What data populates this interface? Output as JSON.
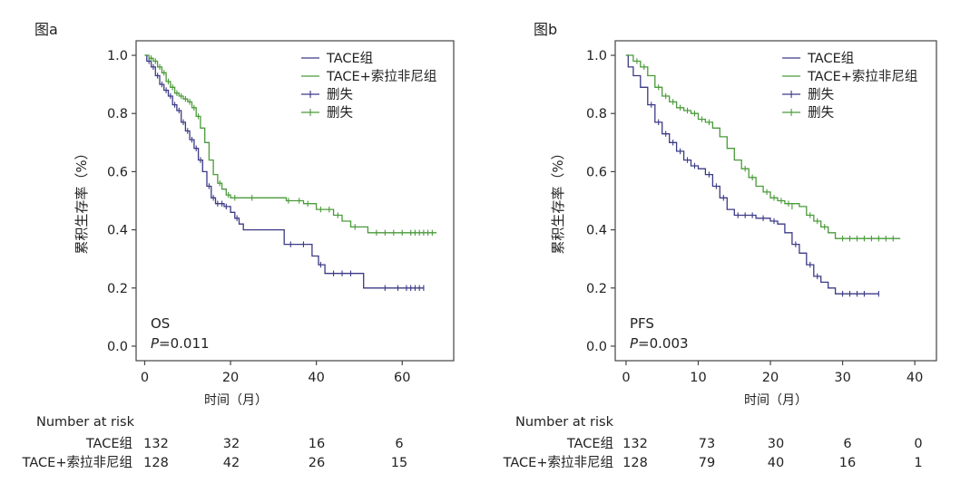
{
  "colors": {
    "tace": "#3b3a86",
    "combo": "#4a9a3a",
    "frame": "#444444",
    "text": "#222222"
  },
  "chart_data": [
    {
      "type": "line",
      "panel_label": "图a",
      "xlabel": "时间（月）",
      "ylabel": "累积生存率（%）",
      "xlim": [
        -2,
        72
      ],
      "ylim": [
        -0.05,
        1.05
      ],
      "xticks": [
        0,
        20,
        40,
        60
      ],
      "yticks": [
        0.0,
        0.2,
        0.4,
        0.6,
        0.8,
        1.0
      ],
      "ytick_labels": [
        "0.0",
        "0.2",
        "0.4",
        "0.6",
        "0.8",
        "1.0"
      ],
      "annotation": {
        "metric": "OS",
        "p_label": "P",
        "p_value": "=0.011"
      },
      "legend": [
        "TACE组",
        "TACE+索拉非尼组",
        "删失",
        "删失"
      ],
      "series": [
        {
          "name": "TACE组",
          "color_key": "tace",
          "steps": [
            [
              0,
              1.0
            ],
            [
              0.5,
              0.98
            ],
            [
              1.5,
              0.96
            ],
            [
              2.5,
              0.93
            ],
            [
              3.5,
              0.9
            ],
            [
              4.5,
              0.88
            ],
            [
              5.5,
              0.86
            ],
            [
              6.5,
              0.83
            ],
            [
              7.5,
              0.81
            ],
            [
              8.5,
              0.77
            ],
            [
              9.5,
              0.74
            ],
            [
              10.5,
              0.71
            ],
            [
              11.5,
              0.68
            ],
            [
              12.5,
              0.64
            ],
            [
              13.5,
              0.6
            ],
            [
              14.5,
              0.55
            ],
            [
              15.5,
              0.51
            ],
            [
              16.5,
              0.49
            ],
            [
              18.5,
              0.48
            ],
            [
              20,
              0.46
            ],
            [
              21,
              0.44
            ],
            [
              22,
              0.42
            ],
            [
              23,
              0.4
            ],
            [
              32.5,
              0.35
            ],
            [
              39,
              0.31
            ],
            [
              40.5,
              0.28
            ],
            [
              42,
              0.25
            ],
            [
              51,
              0.2
            ],
            [
              65,
              0.2
            ]
          ],
          "censors": [
            [
              1,
              0.98
            ],
            [
              2,
              0.96
            ],
            [
              3,
              0.93
            ],
            [
              4,
              0.9
            ],
            [
              5,
              0.88
            ],
            [
              6,
              0.86
            ],
            [
              7,
              0.83
            ],
            [
              8,
              0.81
            ],
            [
              9,
              0.77
            ],
            [
              10,
              0.74
            ],
            [
              11,
              0.71
            ],
            [
              12,
              0.68
            ],
            [
              13,
              0.64
            ],
            [
              15,
              0.55
            ],
            [
              16,
              0.51
            ],
            [
              17,
              0.49
            ],
            [
              18,
              0.49
            ],
            [
              19,
              0.48
            ],
            [
              21.5,
              0.44
            ],
            [
              34,
              0.35
            ],
            [
              37,
              0.35
            ],
            [
              41,
              0.28
            ],
            [
              44,
              0.25
            ],
            [
              46,
              0.25
            ],
            [
              48,
              0.25
            ],
            [
              56,
              0.2
            ],
            [
              59,
              0.2
            ],
            [
              61,
              0.2
            ],
            [
              62,
              0.2
            ],
            [
              63,
              0.2
            ],
            [
              64,
              0.2
            ],
            [
              65,
              0.2
            ]
          ],
          "risk_table": {
            "label": "TACE组",
            "values": [
              "132",
              "32",
              "16",
              "6"
            ]
          }
        },
        {
          "name": "TACE+索拉非尼组",
          "color_key": "combo",
          "steps": [
            [
              0,
              1.0
            ],
            [
              1,
              0.99
            ],
            [
              2,
              0.98
            ],
            [
              3,
              0.96
            ],
            [
              4,
              0.94
            ],
            [
              5,
              0.91
            ],
            [
              6,
              0.89
            ],
            [
              7,
              0.87
            ],
            [
              8,
              0.86
            ],
            [
              9,
              0.85
            ],
            [
              10,
              0.84
            ],
            [
              11,
              0.82
            ],
            [
              12,
              0.79
            ],
            [
              13,
              0.75
            ],
            [
              14,
              0.7
            ],
            [
              15,
              0.64
            ],
            [
              16,
              0.59
            ],
            [
              17,
              0.56
            ],
            [
              18,
              0.54
            ],
            [
              19,
              0.52
            ],
            [
              20,
              0.51
            ],
            [
              27,
              0.51
            ],
            [
              33,
              0.5
            ],
            [
              37,
              0.49
            ],
            [
              40,
              0.47
            ],
            [
              44,
              0.45
            ],
            [
              46,
              0.43
            ],
            [
              48,
              0.41
            ],
            [
              52,
              0.39
            ],
            [
              68,
              0.39
            ]
          ],
          "censors": [
            [
              1.5,
              0.99
            ],
            [
              2.5,
              0.98
            ],
            [
              3.5,
              0.96
            ],
            [
              4.5,
              0.94
            ],
            [
              5.5,
              0.91
            ],
            [
              6.5,
              0.89
            ],
            [
              7.5,
              0.87
            ],
            [
              8.5,
              0.86
            ],
            [
              9.5,
              0.85
            ],
            [
              10.5,
              0.84
            ],
            [
              11.5,
              0.82
            ],
            [
              12.5,
              0.79
            ],
            [
              17.5,
              0.56
            ],
            [
              19.5,
              0.52
            ],
            [
              21,
              0.51
            ],
            [
              25,
              0.51
            ],
            [
              33.5,
              0.5
            ],
            [
              36,
              0.5
            ],
            [
              38,
              0.49
            ],
            [
              41,
              0.47
            ],
            [
              43,
              0.47
            ],
            [
              45,
              0.45
            ],
            [
              49,
              0.41
            ],
            [
              54,
              0.39
            ],
            [
              56,
              0.39
            ],
            [
              58,
              0.39
            ],
            [
              60,
              0.39
            ],
            [
              62,
              0.39
            ],
            [
              63,
              0.39
            ],
            [
              64,
              0.39
            ],
            [
              65,
              0.39
            ],
            [
              66,
              0.39
            ],
            [
              67,
              0.39
            ]
          ],
          "risk_table": {
            "label": "TACE+索拉非尼组",
            "values": [
              "128",
              "42",
              "26",
              "15"
            ]
          }
        }
      ],
      "risk_table_title": "Number at risk"
    },
    {
      "type": "line",
      "panel_label": "图b",
      "xlabel": "时间（月）",
      "ylabel": "累积生存率（%）",
      "xlim": [
        -1.5,
        43
      ],
      "ylim": [
        -0.05,
        1.05
      ],
      "xticks": [
        0,
        10,
        20,
        30,
        40
      ],
      "yticks": [
        0.0,
        0.2,
        0.4,
        0.6,
        0.8,
        1.0
      ],
      "ytick_labels": [
        "0.0",
        "0.2",
        "0.4",
        "0.6",
        "0.8",
        "1.0"
      ],
      "annotation": {
        "metric": "PFS",
        "p_label": "P",
        "p_value": "=0.003"
      },
      "legend": [
        "TACE组",
        "TACE+索拉非尼组",
        "删失",
        "删失"
      ],
      "series": [
        {
          "name": "TACE组",
          "color_key": "tace",
          "steps": [
            [
              0,
              1.0
            ],
            [
              0.3,
              0.96
            ],
            [
              1,
              0.93
            ],
            [
              2,
              0.89
            ],
            [
              3,
              0.83
            ],
            [
              4,
              0.77
            ],
            [
              5,
              0.73
            ],
            [
              6,
              0.7
            ],
            [
              7,
              0.67
            ],
            [
              8,
              0.64
            ],
            [
              9,
              0.62
            ],
            [
              10,
              0.61
            ],
            [
              11,
              0.59
            ],
            [
              12,
              0.55
            ],
            [
              13,
              0.51
            ],
            [
              14,
              0.47
            ],
            [
              15,
              0.45
            ],
            [
              18,
              0.44
            ],
            [
              20,
              0.43
            ],
            [
              21,
              0.42
            ],
            [
              22,
              0.39
            ],
            [
              23,
              0.35
            ],
            [
              24,
              0.32
            ],
            [
              25,
              0.28
            ],
            [
              26,
              0.24
            ],
            [
              27,
              0.22
            ],
            [
              28,
              0.2
            ],
            [
              29,
              0.18
            ],
            [
              35,
              0.18
            ]
          ],
          "censors": [
            [
              3.5,
              0.83
            ],
            [
              4.5,
              0.77
            ],
            [
              5.5,
              0.73
            ],
            [
              6.5,
              0.7
            ],
            [
              7.5,
              0.67
            ],
            [
              8.5,
              0.64
            ],
            [
              9.5,
              0.62
            ],
            [
              11.5,
              0.59
            ],
            [
              12.5,
              0.55
            ],
            [
              13.5,
              0.51
            ],
            [
              15.5,
              0.45
            ],
            [
              16.5,
              0.45
            ],
            [
              17.5,
              0.45
            ],
            [
              19,
              0.44
            ],
            [
              20.5,
              0.43
            ],
            [
              23.5,
              0.35
            ],
            [
              25.5,
              0.28
            ],
            [
              26.5,
              0.24
            ],
            [
              30,
              0.18
            ],
            [
              31,
              0.18
            ],
            [
              32,
              0.18
            ],
            [
              33,
              0.18
            ],
            [
              35,
              0.18
            ]
          ],
          "risk_table": {
            "label": "TACE组",
            "values": [
              "132",
              "73",
              "30",
              "6",
              "0"
            ]
          }
        },
        {
          "name": "TACE+索拉非尼组",
          "color_key": "combo",
          "steps": [
            [
              0,
              1.0
            ],
            [
              1,
              0.98
            ],
            [
              2,
              0.96
            ],
            [
              3,
              0.93
            ],
            [
              4,
              0.89
            ],
            [
              5,
              0.86
            ],
            [
              6,
              0.84
            ],
            [
              7,
              0.82
            ],
            [
              8,
              0.81
            ],
            [
              9,
              0.8
            ],
            [
              10,
              0.78
            ],
            [
              11,
              0.77
            ],
            [
              12,
              0.75
            ],
            [
              13,
              0.72
            ],
            [
              14,
              0.68
            ],
            [
              15,
              0.64
            ],
            [
              16,
              0.61
            ],
            [
              17,
              0.58
            ],
            [
              18,
              0.55
            ],
            [
              19,
              0.53
            ],
            [
              20,
              0.51
            ],
            [
              21,
              0.5
            ],
            [
              22,
              0.49
            ],
            [
              24,
              0.48
            ],
            [
              25,
              0.45
            ],
            [
              26,
              0.43
            ],
            [
              27,
              0.41
            ],
            [
              28,
              0.39
            ],
            [
              29,
              0.37
            ],
            [
              38,
              0.37
            ]
          ],
          "censors": [
            [
              1.5,
              0.98
            ],
            [
              2.5,
              0.96
            ],
            [
              4.5,
              0.89
            ],
            [
              5.5,
              0.86
            ],
            [
              6.5,
              0.84
            ],
            [
              7.5,
              0.82
            ],
            [
              8.5,
              0.81
            ],
            [
              9.5,
              0.8
            ],
            [
              10.5,
              0.78
            ],
            [
              11.5,
              0.77
            ],
            [
              16.5,
              0.61
            ],
            [
              17.5,
              0.58
            ],
            [
              19.5,
              0.53
            ],
            [
              20.5,
              0.51
            ],
            [
              21.5,
              0.5
            ],
            [
              22.5,
              0.49
            ],
            [
              23,
              0.48
            ],
            [
              25.5,
              0.45
            ],
            [
              26.5,
              0.43
            ],
            [
              27.5,
              0.41
            ],
            [
              30,
              0.37
            ],
            [
              31,
              0.37
            ],
            [
              32,
              0.37
            ],
            [
              33,
              0.37
            ],
            [
              34,
              0.37
            ],
            [
              35,
              0.37
            ],
            [
              36,
              0.37
            ],
            [
              37,
              0.37
            ]
          ],
          "risk_table": {
            "label": "TACE+索拉非尼组",
            "values": [
              "128",
              "79",
              "40",
              "16",
              "1"
            ]
          }
        }
      ],
      "risk_table_title": "Number at risk"
    }
  ]
}
